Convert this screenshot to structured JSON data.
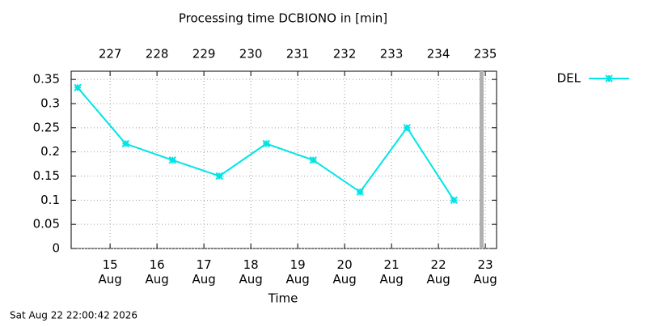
{
  "chart_data": {
    "type": "line",
    "title": "Processing time DCBIONO in [min]",
    "x_label": "Time",
    "footer": "Sat Aug 22 22:00:42 2026",
    "x": [
      14.31,
      15.33,
      16.33,
      17.33,
      18.33,
      19.33,
      20.33,
      21.33,
      22.33
    ],
    "series": [
      {
        "name": "DEL",
        "color": "#00e5e5",
        "values": [
          0.333,
          0.217,
          0.183,
          0.15,
          0.217,
          0.183,
          0.117,
          0.25,
          0.1
        ]
      }
    ],
    "xlim": [
      14.17,
      23.24
    ],
    "xticks": [
      {
        "value": 15,
        "label": "15\nAug"
      },
      {
        "value": 16,
        "label": "16\nAug"
      },
      {
        "value": 17,
        "label": "17\nAug"
      },
      {
        "value": 18,
        "label": "18\nAug"
      },
      {
        "value": 19,
        "label": "19\nAug"
      },
      {
        "value": 20,
        "label": "20\nAug"
      },
      {
        "value": 21,
        "label": "21\nAug"
      },
      {
        "value": 22,
        "label": "22\nAug"
      },
      {
        "value": 23,
        "label": "23\nAug"
      }
    ],
    "x2ticks": [
      {
        "value": 15,
        "label": "227"
      },
      {
        "value": 16,
        "label": "228"
      },
      {
        "value": 17,
        "label": "229"
      },
      {
        "value": 18,
        "label": "230"
      },
      {
        "value": 19,
        "label": "231"
      },
      {
        "value": 20,
        "label": "232"
      },
      {
        "value": 21,
        "label": "233"
      },
      {
        "value": 22,
        "label": "234"
      },
      {
        "value": 23,
        "label": "235"
      }
    ],
    "ylim": [
      0,
      0.367
    ],
    "yticks": [
      0,
      0.05,
      0.1,
      0.15,
      0.2,
      0.25,
      0.3,
      0.35
    ],
    "now_marker": 22.92,
    "grid": true,
    "legend": "top-right"
  }
}
